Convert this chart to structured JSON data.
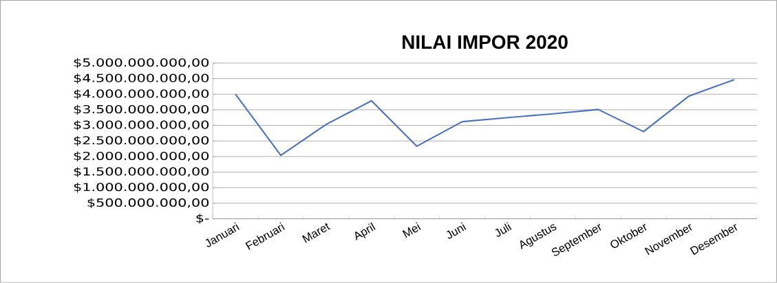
{
  "chart_data": {
    "type": "line",
    "title": "NILAI IMPOR 2020",
    "categories": [
      "Januari",
      "Februari",
      "Maret",
      "April",
      "Mei",
      "Juni",
      "Juli",
      "Agustus",
      "September",
      "Oktober",
      "November",
      "Desember"
    ],
    "values": [
      4000000000,
      2040000000,
      3030000000,
      3790000000,
      2330000000,
      3120000000,
      3250000000,
      3370000000,
      3510000000,
      2800000000,
      3940000000,
      4470000000
    ],
    "color": "#4a72c0",
    "ylim": [
      0,
      5000000000
    ],
    "yticks": [
      {
        "value": 0,
        "label": "$-"
      },
      {
        "value": 500000000,
        "label": "$500.000.000,00"
      },
      {
        "value": 1000000000,
        "label": "$1.000.000.000,00"
      },
      {
        "value": 1500000000,
        "label": "$1.500.000.000,00"
      },
      {
        "value": 2000000000,
        "label": "$2.000.000.000,00"
      },
      {
        "value": 2500000000,
        "label": "$2.500.000.000,00"
      },
      {
        "value": 3000000000,
        "label": "$3.000.000.000,00"
      },
      {
        "value": 3500000000,
        "label": "$3.500.000.000,00"
      },
      {
        "value": 4000000000,
        "label": "$4.000.000.000,00"
      },
      {
        "value": 4500000000,
        "label": "$4.500.000.000,00"
      },
      {
        "value": 5000000000,
        "label": "$5.000.000.000,00"
      }
    ],
    "grid": "y",
    "marker": "none",
    "line_style": "solid"
  }
}
